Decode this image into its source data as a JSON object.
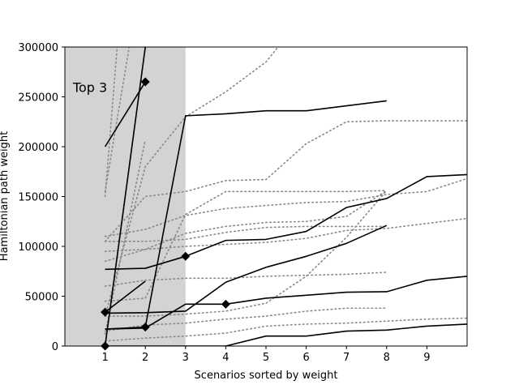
{
  "chart_data": {
    "type": "line",
    "title": "",
    "xlabel": "Scenarios sorted by weight",
    "ylabel": "Hamiltonian path weight",
    "xlim": [
      0,
      10
    ],
    "ylim": [
      0,
      300000
    ],
    "x_ticks": [
      1,
      2,
      3,
      4,
      5,
      6,
      7,
      8,
      9
    ],
    "y_ticks": [
      0,
      50000,
      100000,
      150000,
      200000,
      250000,
      300000
    ],
    "y_tick_labels": [
      "0",
      "50000",
      "100000",
      "150000",
      "200000",
      "250000",
      "300000"
    ],
    "grid": false,
    "legend": "none",
    "shaded_region": {
      "x_from": 0,
      "x_to": 3,
      "color": "#d3d3d3"
    },
    "annotation": {
      "text": "Top 3",
      "x": 0.2,
      "y": 255000
    },
    "solid_color": "#000000",
    "dotted_color": "#888888",
    "solid_series": [
      {
        "points": [
          [
            1,
            200000
          ],
          [
            2,
            265000
          ]
        ],
        "markers": [
          2
        ]
      },
      {
        "points": [
          [
            1,
            0
          ],
          [
            2,
            300000
          ]
        ],
        "markers": [
          1
        ]
      },
      {
        "points": [
          [
            1,
            77000
          ],
          [
            2,
            78000
          ],
          [
            3,
            90000
          ],
          [
            4,
            106000
          ],
          [
            5,
            107000
          ],
          [
            6,
            115000
          ],
          [
            7,
            139000
          ],
          [
            8,
            148000
          ],
          [
            9,
            170000
          ],
          [
            10,
            172000
          ]
        ],
        "markers": [
          3
        ]
      },
      {
        "points": [
          [
            1,
            34000
          ],
          [
            2,
            65000
          ]
        ],
        "markers": [
          1
        ]
      },
      {
        "points": [
          [
            1,
            33000
          ],
          [
            2,
            33500
          ],
          [
            3,
            35000
          ],
          [
            4,
            64000
          ],
          [
            5,
            79000
          ],
          [
            6,
            90000
          ],
          [
            7,
            103000
          ],
          [
            8,
            121000
          ]
        ],
        "markers": []
      },
      {
        "points": [
          [
            1,
            17000
          ],
          [
            2,
            19000
          ],
          [
            3,
            231000
          ],
          [
            4,
            233000
          ],
          [
            5,
            236000
          ],
          [
            6,
            236000
          ],
          [
            7,
            241000
          ],
          [
            8,
            246000
          ]
        ],
        "markers": [
          2
        ]
      },
      {
        "points": [
          [
            1,
            17000
          ],
          [
            2,
            18000
          ],
          [
            3,
            42000
          ],
          [
            4,
            42000
          ],
          [
            5,
            48000
          ],
          [
            6,
            51000
          ],
          [
            7,
            54000
          ],
          [
            8,
            54500
          ],
          [
            9,
            66000
          ],
          [
            10,
            70000
          ]
        ],
        "markers": [
          4
        ]
      },
      {
        "points": [
          [
            1,
            0
          ],
          [
            2,
            0
          ],
          [
            3,
            0
          ],
          [
            4,
            0
          ],
          [
            5,
            10000
          ],
          [
            6,
            10000
          ],
          [
            7,
            15000
          ],
          [
            8,
            16000
          ],
          [
            9,
            20000
          ],
          [
            10,
            22000
          ]
        ],
        "markers": []
      }
    ],
    "dotted_series": [
      {
        "points": [
          [
            1,
            150000
          ],
          [
            1.3,
            300000
          ]
        ]
      },
      {
        "points": [
          [
            1,
            155000
          ],
          [
            1.6,
            300000
          ]
        ]
      },
      {
        "points": [
          [
            1,
            0
          ],
          [
            2,
            300000
          ]
        ]
      },
      {
        "points": [
          [
            1,
            12000
          ],
          [
            2,
            207000
          ]
        ]
      },
      {
        "points": [
          [
            1,
            30000
          ],
          [
            2,
            180000
          ],
          [
            3,
            230000
          ],
          [
            4,
            255000
          ],
          [
            5,
            285000
          ],
          [
            5.3,
            300000
          ]
        ]
      },
      {
        "points": [
          [
            1,
            105000
          ],
          [
            2,
            150000
          ],
          [
            3,
            155000
          ],
          [
            4,
            166000
          ],
          [
            5,
            167000
          ],
          [
            6,
            203000
          ],
          [
            7,
            225000
          ],
          [
            8,
            226000
          ],
          [
            9,
            226000
          ],
          [
            10,
            226000
          ]
        ]
      },
      {
        "points": [
          [
            1,
            110000
          ],
          [
            2,
            117000
          ],
          [
            3,
            131000
          ],
          [
            4,
            138000
          ],
          [
            5,
            141000
          ],
          [
            6,
            144000
          ],
          [
            7,
            145000
          ],
          [
            8,
            152000
          ],
          [
            9,
            155000
          ],
          [
            10,
            168000
          ]
        ]
      },
      {
        "points": [
          [
            1,
            105000
          ],
          [
            2,
            105000
          ],
          [
            3,
            107000
          ],
          [
            4,
            114000
          ],
          [
            5,
            119000
          ],
          [
            6,
            120000
          ],
          [
            7,
            120000
          ],
          [
            8,
            120000
          ]
        ]
      },
      {
        "points": [
          [
            1,
            95000
          ],
          [
            2,
            97000
          ],
          [
            3,
            100000
          ],
          [
            4,
            102000
          ],
          [
            5,
            104000
          ],
          [
            6,
            108000
          ],
          [
            7,
            116000
          ],
          [
            8,
            118000
          ],
          [
            9,
            123000
          ],
          [
            10,
            128000
          ]
        ]
      },
      {
        "points": [
          [
            1,
            85000
          ],
          [
            2,
            97000
          ],
          [
            3,
            113000
          ],
          [
            4,
            120000
          ],
          [
            5,
            124000
          ],
          [
            6,
            125000
          ],
          [
            7,
            130000
          ],
          [
            8,
            156000
          ]
        ]
      },
      {
        "points": [
          [
            1,
            60000
          ],
          [
            2,
            66000
          ],
          [
            3,
            68000
          ],
          [
            4,
            68000
          ],
          [
            5,
            70000
          ],
          [
            6,
            71000
          ],
          [
            7,
            72000
          ],
          [
            8,
            74000
          ]
        ]
      },
      {
        "points": [
          [
            1,
            45000
          ],
          [
            2,
            48000
          ],
          [
            3,
            132000
          ],
          [
            4,
            155000
          ],
          [
            5,
            155000
          ],
          [
            6,
            155000
          ],
          [
            7,
            155000
          ],
          [
            8,
            156000
          ]
        ]
      },
      {
        "points": [
          [
            1,
            30000
          ],
          [
            2,
            30000
          ],
          [
            3,
            32000
          ],
          [
            4,
            35000
          ],
          [
            5,
            43000
          ],
          [
            6,
            70000
          ],
          [
            7,
            109000
          ],
          [
            8,
            156000
          ]
        ]
      },
      {
        "points": [
          [
            1,
            15000
          ],
          [
            2,
            21000
          ],
          [
            3,
            23000
          ],
          [
            4,
            27000
          ],
          [
            5,
            30000
          ],
          [
            6,
            35000
          ],
          [
            7,
            38000
          ],
          [
            8,
            38000
          ]
        ]
      },
      {
        "points": [
          [
            1,
            5000
          ],
          [
            2,
            8000
          ],
          [
            3,
            10000
          ],
          [
            4,
            13000
          ],
          [
            5,
            20000
          ],
          [
            6,
            22000
          ],
          [
            7,
            23000
          ],
          [
            8,
            25000
          ],
          [
            9,
            27000
          ],
          [
            10,
            28000
          ]
        ]
      }
    ]
  }
}
